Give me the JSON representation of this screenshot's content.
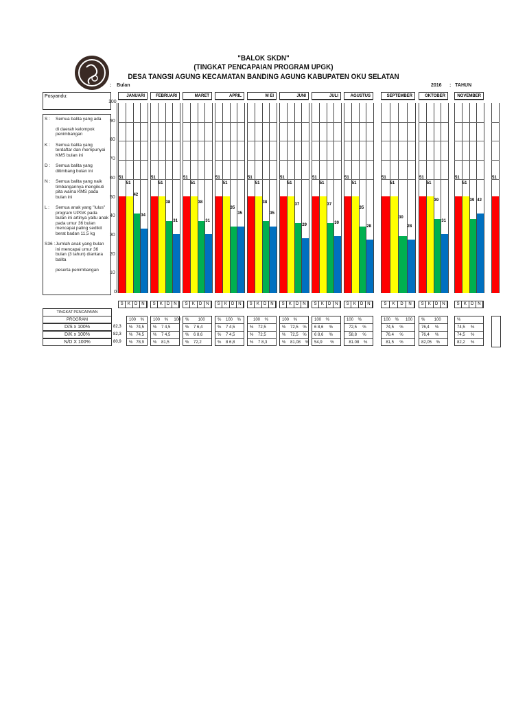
{
  "header": {
    "title1": "\"BALOK SKDN\"",
    "title2": "(TINGKAT PENCAPAIAN PROGRAM UPGK)",
    "title3": "DESA TANGSI AGUNG KECAMATAN BANDING AGUNG KABUPATEN OKU SELATAN",
    "bulan_label": ":    Bulan",
    "year": "2016",
    "tahun_label": ":   TAHUN"
  },
  "posyandu_label": "Posyandu:",
  "legend": [
    {
      "key": "S :",
      "text": "Semua balita yang ada"
    },
    {
      "key": "",
      "text": "di daerah kelompok penimbangan"
    },
    {
      "key": "K :",
      "text": "Semua balita yang terdaftar dan mempunyai KMS bulan ini"
    },
    {
      "key": "D :",
      "text": "Semua balita  yang ditimbang bulan ini"
    },
    {
      "key": "N :",
      "text": "Semua balita  yang naik timbangannya mengikuti pita warna KMS pada bulan ini"
    },
    {
      "key": "L :",
      "text": "Semua anak yang \"lulus\" program UPGK pada bulan ini artinya yaitu anak pada umur 36 bulan mencapai paling sedikit berat badan 11,5 kg"
    },
    {
      "key": "S36 :",
      "text": "Jumlah anak yang bulan ini mencapai umur 36 bulan (3 tahun) diantara balita"
    },
    {
      "key": "",
      "text": "peserta  penimbangan"
    }
  ],
  "chart_data": {
    "type": "bar",
    "categories": [
      "JANUARI",
      "FEBRUARI",
      "MARET",
      "APRIL",
      "M EI",
      "JUNI",
      "JULI",
      "AGUSTUS",
      "SEPTEMBER",
      "OKTOBER",
      "NOVEMBER",
      ""
    ],
    "series": [
      {
        "name": "S",
        "color": "#ff0000",
        "values": [
          51,
          51,
          51,
          51,
          51,
          51,
          51,
          51,
          51,
          51,
          51,
          51
        ]
      },
      {
        "name": "K",
        "color": "#ffff00",
        "values": [
          51,
          51,
          51,
          51,
          51,
          51,
          51,
          51,
          51,
          51,
          51,
          null
        ]
      },
      {
        "name": "D",
        "color": "#00b050",
        "values": [
          42,
          38,
          38,
          35,
          38,
          37,
          37,
          35,
          30,
          39,
          39,
          null
        ]
      },
      {
        "name": "N",
        "color": "#0070c0",
        "values": [
          34,
          31,
          31,
          35,
          35,
          29,
          30,
          28,
          28,
          31,
          42,
          null
        ]
      }
    ],
    "ylim": [
      0,
      100
    ],
    "yticks": [
      "0",
      "10",
      "20",
      "30",
      "40",
      "50",
      "60",
      "70",
      "80",
      "90",
      "100"
    ],
    "sublabels": [
      "S",
      "K",
      "D",
      "N"
    ]
  },
  "table": {
    "header1": "TINGKAT PENCAPAIAN",
    "header2": "PROGRAM",
    "rows": [
      "D/S x 100%",
      "D/K x 100%",
      "N/D X 100%"
    ],
    "left": [
      "",
      "82,3",
      "82,3",
      "80,9"
    ],
    "months": [
      [
        "100    %",
        "%   74,5",
        "%   74,5",
        "%   78,9"
      ],
      [
        "100    %     100",
        "%    7 4,5",
        "%    7 4,5",
        "%    81,5"
      ],
      [
        "%        100",
        "%    7 6,4",
        "%    6 8,6",
        "%    72,2"
      ],
      [
        "%    100    %",
        "%    7 4,5",
        "%    7 4,5",
        "%    8 6,8"
      ],
      [
        "   100    %",
        "%    72,5",
        "%    72,5",
        "%    7 8,3"
      ],
      [
        "100    %",
        "%    72,5    %",
        "%    72,5    %",
        "%    81,08    %"
      ],
      [
        "100    %",
        "6 8,6     %",
        "6 8,6     %",
        "54,9       %"
      ],
      [
        "100    %",
        "  72,5     %",
        "  58,8     %",
        "  81.08    %"
      ],
      [
        "100    %      100",
        "  74,5     %",
        "  76.4     %",
        "  81,5     %"
      ],
      [
        "%        100",
        "76,4     %",
        "76,4     %",
        "82,05    %"
      ],
      [
        "%",
        "74,5     %",
        "74,5     %",
        "82,2     %"
      ]
    ]
  }
}
